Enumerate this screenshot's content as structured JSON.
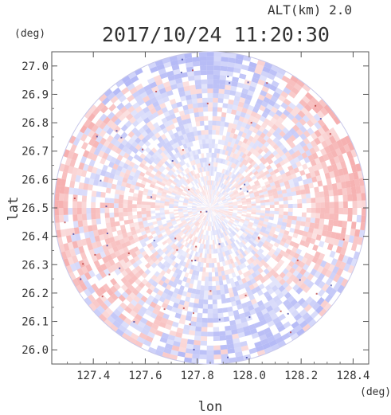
{
  "header": {
    "altitude_label": "ALT(km)  2.0",
    "datetime_label": "2017/10/24 11:20:30"
  },
  "chart_data": {
    "type": "heatmap",
    "title": "2017/10/24 11:20:30",
    "subtitle": "ALT(km)  2.0",
    "xlabel": "lon",
    "ylabel": "lat",
    "x_unit": "(deg)",
    "y_unit": "(deg)",
    "xlim": [
      127.24,
      128.46
    ],
    "ylim": [
      25.95,
      27.05
    ],
    "x_ticks": [
      "127.4",
      "127.6",
      "127.8",
      "128.0",
      "128.2",
      "128.4"
    ],
    "y_ticks": [
      "27.0",
      "26.9",
      "26.8",
      "26.7",
      "26.6",
      "26.5",
      "26.4",
      "26.3",
      "26.2",
      "26.1",
      "26.0"
    ],
    "center": {
      "lon": 127.85,
      "lat": 26.5
    },
    "radius_deg_lat": 0.55,
    "colors": {
      "positive": "#f4a0a0",
      "negative": "#a6acf4",
      "neutral": "#ffffff"
    },
    "grid": false,
    "legend": "none"
  }
}
